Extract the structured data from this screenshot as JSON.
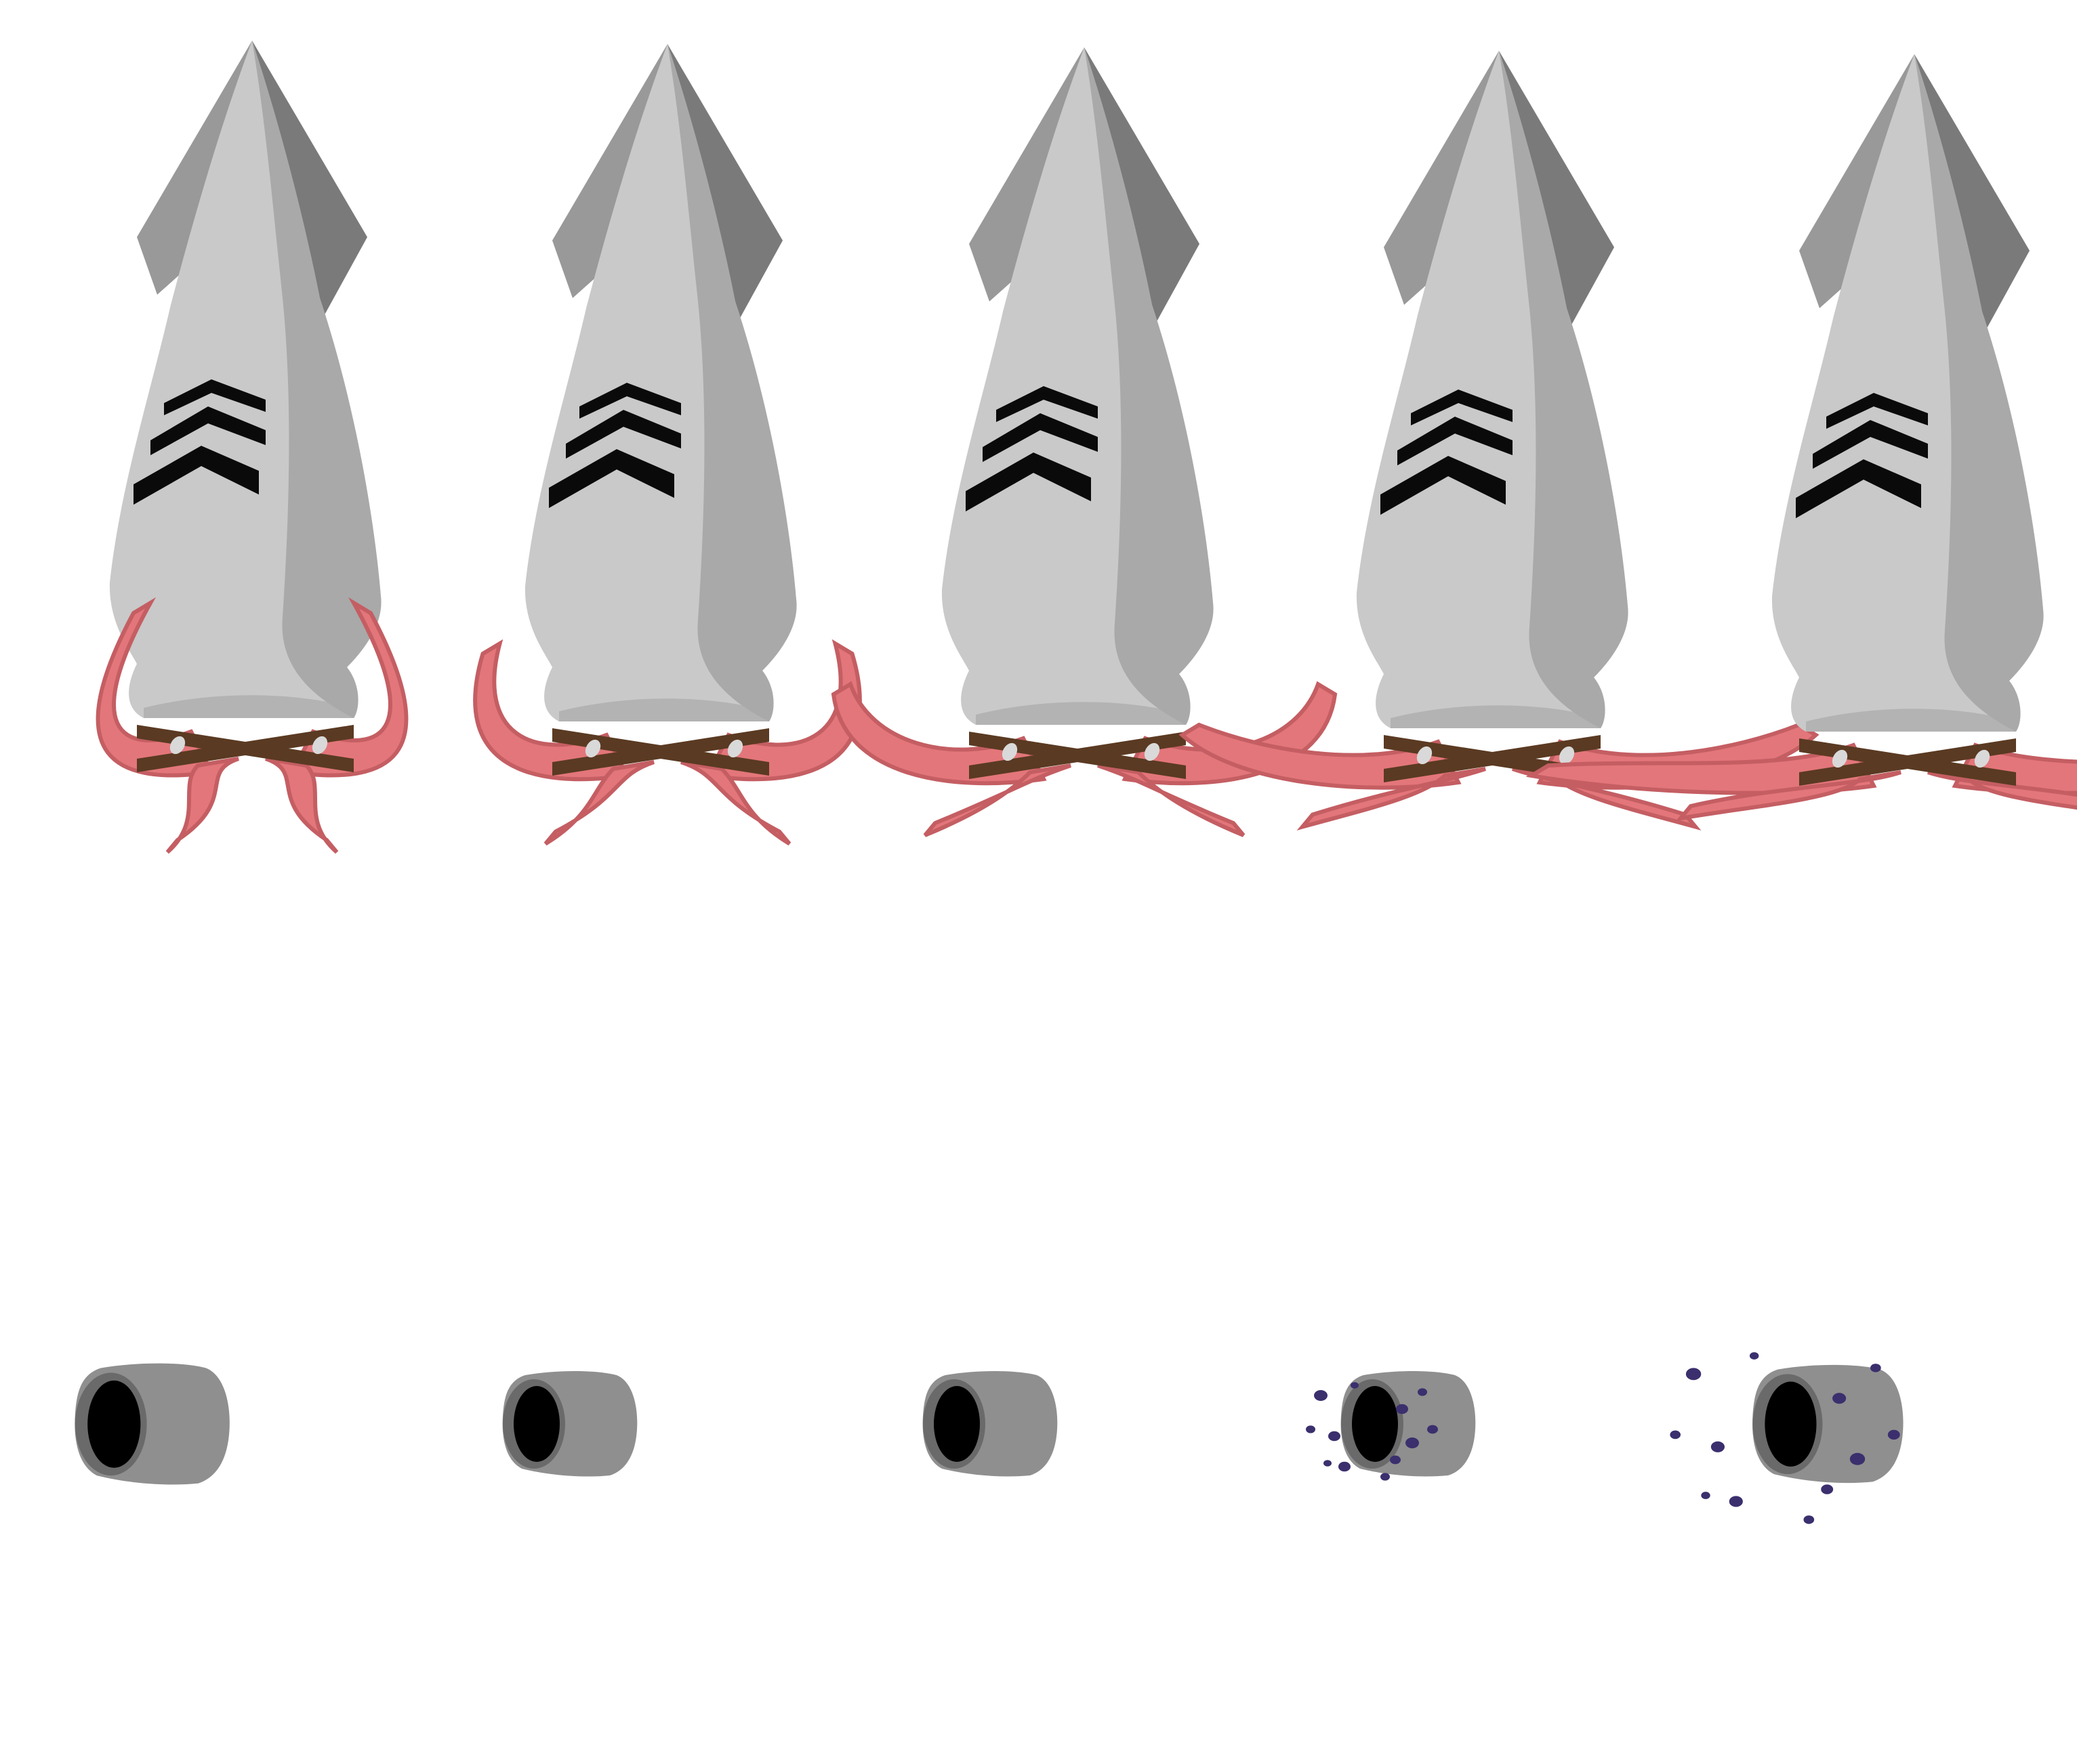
{
  "sheet": {
    "background": "#ffffff",
    "colors": {
      "body_light": "#c9c9c9",
      "body_shadow": "#a9a9a9",
      "fin_dark": "#7a7a7a",
      "fin_mid": "#999999",
      "chevron": "#0a0a0a",
      "tentacle": "#e3767a",
      "tentacle_dark": "#c45e63",
      "tentacle_light": "#f29898",
      "strap": "#5a3a22",
      "rivet": "#d9d9d9",
      "cannon": "#8f8f8f",
      "cannon_rim": "#6a6a6a",
      "bore": "#000000",
      "ink": "#3b2f6e"
    },
    "squid_frames": [
      {
        "frame": 1,
        "tentacle_spread": 0.0
      },
      {
        "frame": 2,
        "tentacle_spread": 0.25
      },
      {
        "frame": 3,
        "tentacle_spread": 0.5
      },
      {
        "frame": 4,
        "tentacle_spread": 0.75
      },
      {
        "frame": 5,
        "tentacle_spread": 1.0
      }
    ],
    "cannon_frames": [
      {
        "frame": 1,
        "ink_burst": 0
      },
      {
        "frame": 2,
        "ink_burst": 0
      },
      {
        "frame": 3,
        "ink_burst": 0
      },
      {
        "frame": 4,
        "ink_burst": 1
      },
      {
        "frame": 5,
        "ink_burst": 2
      }
    ]
  }
}
